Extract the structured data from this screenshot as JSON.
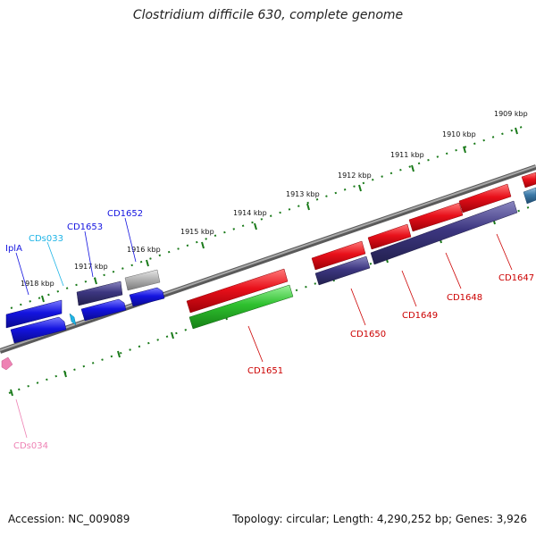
{
  "title": "Clostridium difficile 630, complete genome",
  "footer": {
    "accession": "Accession: NC_009089",
    "stats": "Topology: circular; Length: 4,290,252 bp; Genes: 3,926"
  },
  "colors": {
    "red": "#e8101a",
    "blue": "#1414e0",
    "navy": "#3c3680",
    "green": "#2ec02e",
    "gray": "#b4b4b4",
    "cyan": "#1eb4e6",
    "pink": "#ee82b4",
    "steel": "#3c7aa8",
    "tick": "#1a7a1a",
    "backbone": "#808080"
  },
  "kbp_labels": [
    "1909 kbp",
    "1910 kbp",
    "1911 kbp",
    "1912 kbp",
    "1913 kbp",
    "1914 kbp",
    "1915 kbp",
    "1916 kbp",
    "1917 kbp",
    "1918 kbp"
  ],
  "genes": [
    {
      "label": "IplA",
      "color": "blue"
    },
    {
      "label": "CDs033",
      "color": "cyan"
    },
    {
      "label": "CD1653",
      "color": "blue"
    },
    {
      "label": "CD1652",
      "color": "blue"
    },
    {
      "label": "CD1651",
      "color": "red"
    },
    {
      "label": "CD1650",
      "color": "red"
    },
    {
      "label": "CD1649",
      "color": "red"
    },
    {
      "label": "CD1648",
      "color": "red"
    },
    {
      "label": "CD1647",
      "color": "red"
    },
    {
      "label": "CDs034",
      "color": "pink"
    }
  ]
}
